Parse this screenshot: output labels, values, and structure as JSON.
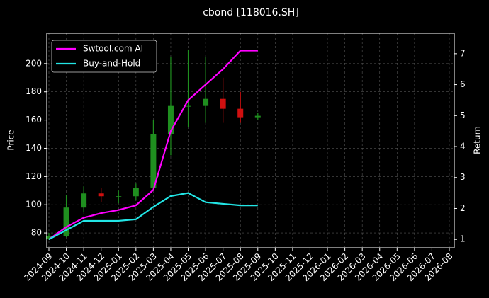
{
  "chart_data": {
    "type": "candlestick",
    "title": "cbond [118016.SH]",
    "y_label": "Price",
    "y2_label": "Return",
    "x": [
      "2024-09",
      "2024-10",
      "2024-11",
      "2024-12",
      "2025-01",
      "2025-02",
      "2025-03",
      "2025-04",
      "2025-05",
      "2025-06",
      "2025-07",
      "2025-08",
      "2025-09"
    ],
    "open": [
      76,
      78,
      98,
      108,
      106,
      106,
      112,
      150,
      170,
      170,
      175,
      168,
      162
    ],
    "high": [
      80,
      107,
      113,
      112,
      110,
      115,
      160,
      205,
      210,
      205,
      190,
      180,
      165
    ],
    "low": [
      75,
      77,
      95,
      102,
      101,
      103,
      110,
      135,
      155,
      158,
      158,
      158,
      160
    ],
    "close": [
      78,
      98,
      108,
      106,
      106,
      112,
      150,
      170,
      170,
      175,
      168,
      162,
      163
    ],
    "up_color": "#1f8f1f",
    "down_color": "#d01010",
    "series": [
      {
        "name": "Swtool.com AI",
        "color": "#ff00ff",
        "axis": "y2",
        "values": [
          1.0,
          1.4,
          1.7,
          1.85,
          1.95,
          2.1,
          2.6,
          4.5,
          5.5,
          6.0,
          6.5,
          7.1,
          7.1
        ]
      },
      {
        "name": "Buy-and-Hold",
        "color": "#22e5e5",
        "axis": "y2",
        "values": [
          1.0,
          1.3,
          1.6,
          1.6,
          1.6,
          1.65,
          2.05,
          2.4,
          2.5,
          2.2,
          2.15,
          2.1,
          2.1
        ]
      }
    ],
    "xticks": [
      "2024-09",
      "2024-10",
      "2024-11",
      "2024-12",
      "2025-01",
      "2025-02",
      "2025-03",
      "2025-04",
      "2025-05",
      "2025-06",
      "2025-07",
      "2025-08",
      "2025-09",
      "2025-10",
      "2025-11",
      "2025-12",
      "2026-01",
      "2026-02",
      "2026-03",
      "2026-04",
      "2026-05",
      "2026-06",
      "2026-07",
      "2026-08"
    ],
    "ylim": [
      69.5,
      221.5
    ],
    "yticks": [
      80,
      100,
      120,
      140,
      160,
      180,
      200
    ],
    "y2lim": [
      0.73,
      7.66
    ],
    "y2ticks": [
      1,
      2,
      3,
      4,
      5,
      6,
      7
    ],
    "grid": true,
    "legend": "upper-left"
  }
}
